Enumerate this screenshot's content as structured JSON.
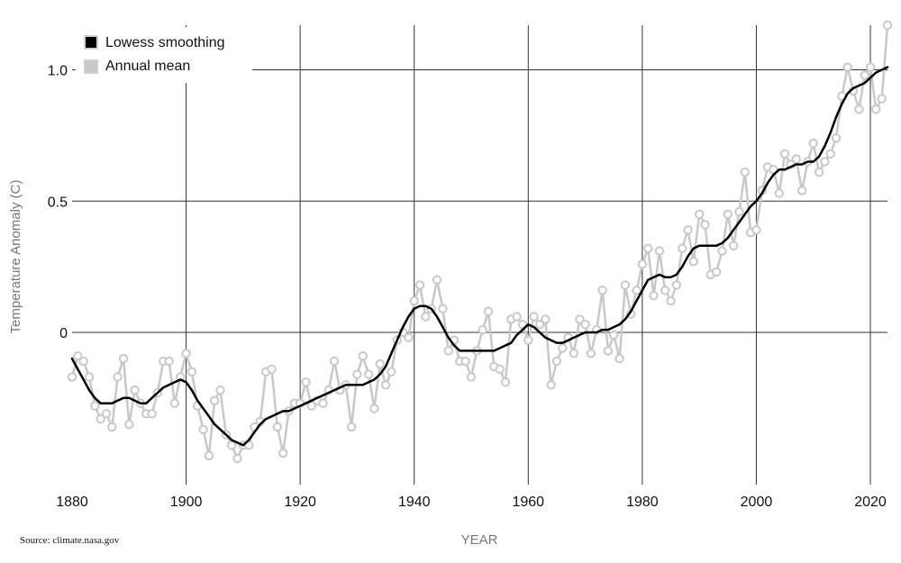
{
  "chart_data": {
    "type": "line",
    "xlabel": "YEAR",
    "ylabel": "Temperature Anomaly (C)",
    "source": "Source: climate.nasa.gov",
    "xlim": [
      1880,
      2023
    ],
    "ylim": [
      -0.58,
      1.17
    ],
    "x_ticks": [
      1880,
      1900,
      1920,
      1940,
      1960,
      1980,
      2000,
      2020
    ],
    "x_tick_labels": [
      "1880",
      "1900",
      "1920",
      "1940",
      "1960",
      "1980",
      "2000",
      "2020"
    ],
    "y_ticks": [
      0,
      0.5,
      1.0
    ],
    "y_tick_labels": [
      "0",
      "0.5",
      "1.0"
    ],
    "grid": true,
    "legend": {
      "placement": "top-left",
      "entries": [
        "Lowess smoothing",
        "Annual mean"
      ]
    },
    "colors": {
      "smoothing": "#000000",
      "annual": "#c8c8c8",
      "grid": "#333333"
    },
    "series": [
      {
        "name": "Lowess smoothing",
        "x": [
          1880,
          1881,
          1882,
          1883,
          1884,
          1885,
          1886,
          1887,
          1888,
          1889,
          1890,
          1891,
          1892,
          1893,
          1894,
          1895,
          1896,
          1897,
          1898,
          1899,
          1900,
          1901,
          1902,
          1903,
          1904,
          1905,
          1906,
          1907,
          1908,
          1909,
          1910,
          1911,
          1912,
          1913,
          1914,
          1915,
          1916,
          1917,
          1918,
          1919,
          1920,
          1921,
          1922,
          1923,
          1924,
          1925,
          1926,
          1927,
          1928,
          1929,
          1930,
          1931,
          1932,
          1933,
          1934,
          1935,
          1936,
          1937,
          1938,
          1939,
          1940,
          1941,
          1942,
          1943,
          1944,
          1945,
          1946,
          1947,
          1948,
          1949,
          1950,
          1951,
          1952,
          1953,
          1954,
          1955,
          1956,
          1957,
          1958,
          1959,
          1960,
          1961,
          1962,
          1963,
          1964,
          1965,
          1966,
          1967,
          1968,
          1969,
          1970,
          1971,
          1972,
          1973,
          1974,
          1975,
          1976,
          1977,
          1978,
          1979,
          1980,
          1981,
          1982,
          1983,
          1984,
          1985,
          1986,
          1987,
          1988,
          1989,
          1990,
          1991,
          1992,
          1993,
          1994,
          1995,
          1996,
          1997,
          1998,
          1999,
          2000,
          2001,
          2002,
          2003,
          2004,
          2005,
          2006,
          2007,
          2008,
          2009,
          2010,
          2011,
          2012,
          2013,
          2014,
          2015,
          2016,
          2017,
          2018,
          2019,
          2020,
          2021,
          2022,
          2023
        ],
        "values": [
          -0.1,
          -0.14,
          -0.18,
          -0.22,
          -0.25,
          -0.27,
          -0.27,
          -0.27,
          -0.26,
          -0.25,
          -0.25,
          -0.26,
          -0.27,
          -0.27,
          -0.25,
          -0.23,
          -0.21,
          -0.2,
          -0.19,
          -0.18,
          -0.19,
          -0.22,
          -0.26,
          -0.29,
          -0.32,
          -0.35,
          -0.37,
          -0.39,
          -0.41,
          -0.42,
          -0.43,
          -0.41,
          -0.38,
          -0.35,
          -0.33,
          -0.32,
          -0.31,
          -0.3,
          -0.3,
          -0.29,
          -0.28,
          -0.27,
          -0.26,
          -0.25,
          -0.24,
          -0.23,
          -0.22,
          -0.21,
          -0.2,
          -0.2,
          -0.2,
          -0.2,
          -0.19,
          -0.18,
          -0.16,
          -0.13,
          -0.08,
          -0.03,
          0.02,
          0.06,
          0.09,
          0.1,
          0.1,
          0.09,
          0.06,
          0.02,
          -0.02,
          -0.05,
          -0.07,
          -0.07,
          -0.07,
          -0.07,
          -0.07,
          -0.07,
          -0.07,
          -0.06,
          -0.05,
          -0.04,
          -0.01,
          0.01,
          0.03,
          0.02,
          0.0,
          -0.02,
          -0.03,
          -0.04,
          -0.04,
          -0.03,
          -0.02,
          -0.01,
          0.0,
          0.0,
          0.0,
          0.01,
          0.01,
          0.02,
          0.03,
          0.05,
          0.08,
          0.12,
          0.16,
          0.2,
          0.21,
          0.22,
          0.21,
          0.21,
          0.22,
          0.25,
          0.29,
          0.32,
          0.33,
          0.33,
          0.33,
          0.33,
          0.34,
          0.36,
          0.39,
          0.42,
          0.45,
          0.48,
          0.5,
          0.53,
          0.57,
          0.6,
          0.62,
          0.62,
          0.63,
          0.64,
          0.64,
          0.65,
          0.65,
          0.67,
          0.71,
          0.76,
          0.82,
          0.87,
          0.91,
          0.93,
          0.94,
          0.95,
          0.97,
          0.99,
          1.0,
          1.01
        ]
      },
      {
        "name": "Annual mean",
        "x": [
          1880,
          1881,
          1882,
          1883,
          1884,
          1885,
          1886,
          1887,
          1888,
          1889,
          1890,
          1891,
          1892,
          1893,
          1894,
          1895,
          1896,
          1897,
          1898,
          1899,
          1900,
          1901,
          1902,
          1903,
          1904,
          1905,
          1906,
          1907,
          1908,
          1909,
          1910,
          1911,
          1912,
          1913,
          1914,
          1915,
          1916,
          1917,
          1918,
          1919,
          1920,
          1921,
          1922,
          1923,
          1924,
          1925,
          1926,
          1927,
          1928,
          1929,
          1930,
          1931,
          1932,
          1933,
          1934,
          1935,
          1936,
          1937,
          1938,
          1939,
          1940,
          1941,
          1942,
          1943,
          1944,
          1945,
          1946,
          1947,
          1948,
          1949,
          1950,
          1951,
          1952,
          1953,
          1954,
          1955,
          1956,
          1957,
          1958,
          1959,
          1960,
          1961,
          1962,
          1963,
          1964,
          1965,
          1966,
          1967,
          1968,
          1969,
          1970,
          1971,
          1972,
          1973,
          1974,
          1975,
          1976,
          1977,
          1978,
          1979,
          1980,
          1981,
          1982,
          1983,
          1984,
          1985,
          1986,
          1987,
          1988,
          1989,
          1990,
          1991,
          1992,
          1993,
          1994,
          1995,
          1996,
          1997,
          1998,
          1999,
          2000,
          2001,
          2002,
          2003,
          2004,
          2005,
          2006,
          2007,
          2008,
          2009,
          2010,
          2011,
          2012,
          2013,
          2014,
          2015,
          2016,
          2017,
          2018,
          2019,
          2020,
          2021,
          2022,
          2023
        ],
        "values": [
          -0.17,
          -0.09,
          -0.11,
          -0.17,
          -0.28,
          -0.33,
          -0.31,
          -0.36,
          -0.17,
          -0.1,
          -0.35,
          -0.22,
          -0.27,
          -0.31,
          -0.31,
          -0.23,
          -0.11,
          -0.11,
          -0.27,
          -0.17,
          -0.08,
          -0.15,
          -0.28,
          -0.37,
          -0.47,
          -0.26,
          -0.22,
          -0.39,
          -0.43,
          -0.48,
          -0.43,
          -0.43,
          -0.36,
          -0.34,
          -0.15,
          -0.14,
          -0.36,
          -0.46,
          -0.3,
          -0.27,
          -0.27,
          -0.19,
          -0.28,
          -0.26,
          -0.27,
          -0.22,
          -0.11,
          -0.22,
          -0.2,
          -0.36,
          -0.16,
          -0.09,
          -0.16,
          -0.29,
          -0.12,
          -0.2,
          -0.15,
          -0.03,
          0.0,
          -0.02,
          0.12,
          0.18,
          0.06,
          0.09,
          0.2,
          0.09,
          -0.07,
          -0.03,
          -0.11,
          -0.11,
          -0.17,
          -0.07,
          0.01,
          0.08,
          -0.13,
          -0.14,
          -0.19,
          0.05,
          0.06,
          0.03,
          -0.03,
          0.06,
          0.03,
          0.05,
          -0.2,
          -0.11,
          -0.06,
          -0.02,
          -0.08,
          0.05,
          0.03,
          -0.08,
          0.01,
          0.16,
          -0.07,
          -0.01,
          -0.1,
          0.18,
          0.07,
          0.16,
          0.26,
          0.32,
          0.14,
          0.31,
          0.16,
          0.12,
          0.18,
          0.32,
          0.39,
          0.27,
          0.45,
          0.41,
          0.22,
          0.23,
          0.31,
          0.45,
          0.33,
          0.46,
          0.61,
          0.38,
          0.39,
          0.54,
          0.63,
          0.62,
          0.53,
          0.68,
          0.64,
          0.66,
          0.54,
          0.65,
          0.72,
          0.61,
          0.65,
          0.68,
          0.74,
          0.9,
          1.01,
          0.92,
          0.85,
          0.98,
          1.01,
          0.85,
          0.89,
          1.17
        ]
      }
    ]
  }
}
